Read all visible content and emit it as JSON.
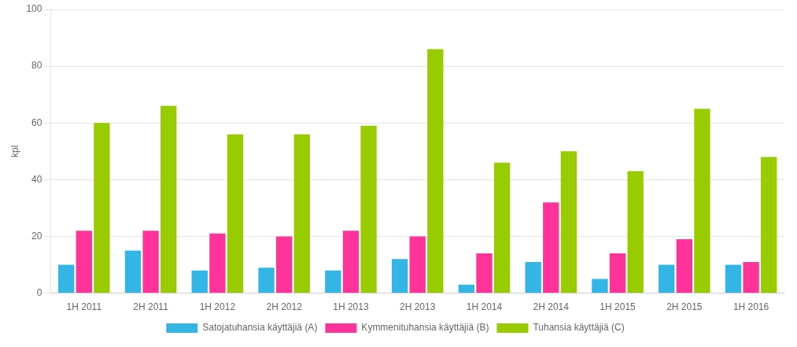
{
  "chart_data": {
    "type": "bar",
    "categories": [
      "1H 2011",
      "2H 2011",
      "1H 2012",
      "2H 2012",
      "1H 2013",
      "2H 2013",
      "1H 2014",
      "2H 2014",
      "1H 2015",
      "2H 2015",
      "1H 2016"
    ],
    "series": [
      {
        "name": "Satojatuhansia käyttäjiä (A)",
        "color": "#33b5e5",
        "values": [
          10,
          15,
          8,
          9,
          8,
          12,
          3,
          11,
          5,
          10,
          10
        ]
      },
      {
        "name": "Kymmenituhansia käyttäjiä (B)",
        "color": "#ff3399",
        "values": [
          22,
          22,
          21,
          20,
          22,
          20,
          14,
          32,
          14,
          19,
          11
        ]
      },
      {
        "name": "Tuhansia käyttäjiä (C)",
        "color": "#99cc00",
        "values": [
          60,
          66,
          56,
          56,
          59,
          86,
          46,
          50,
          43,
          65,
          48
        ]
      }
    ],
    "ylabel": "kpl",
    "ylim": [
      0,
      100
    ],
    "yticks": [
      0,
      20,
      40,
      60,
      80,
      100
    ],
    "grid": true,
    "legend": "bottom"
  }
}
